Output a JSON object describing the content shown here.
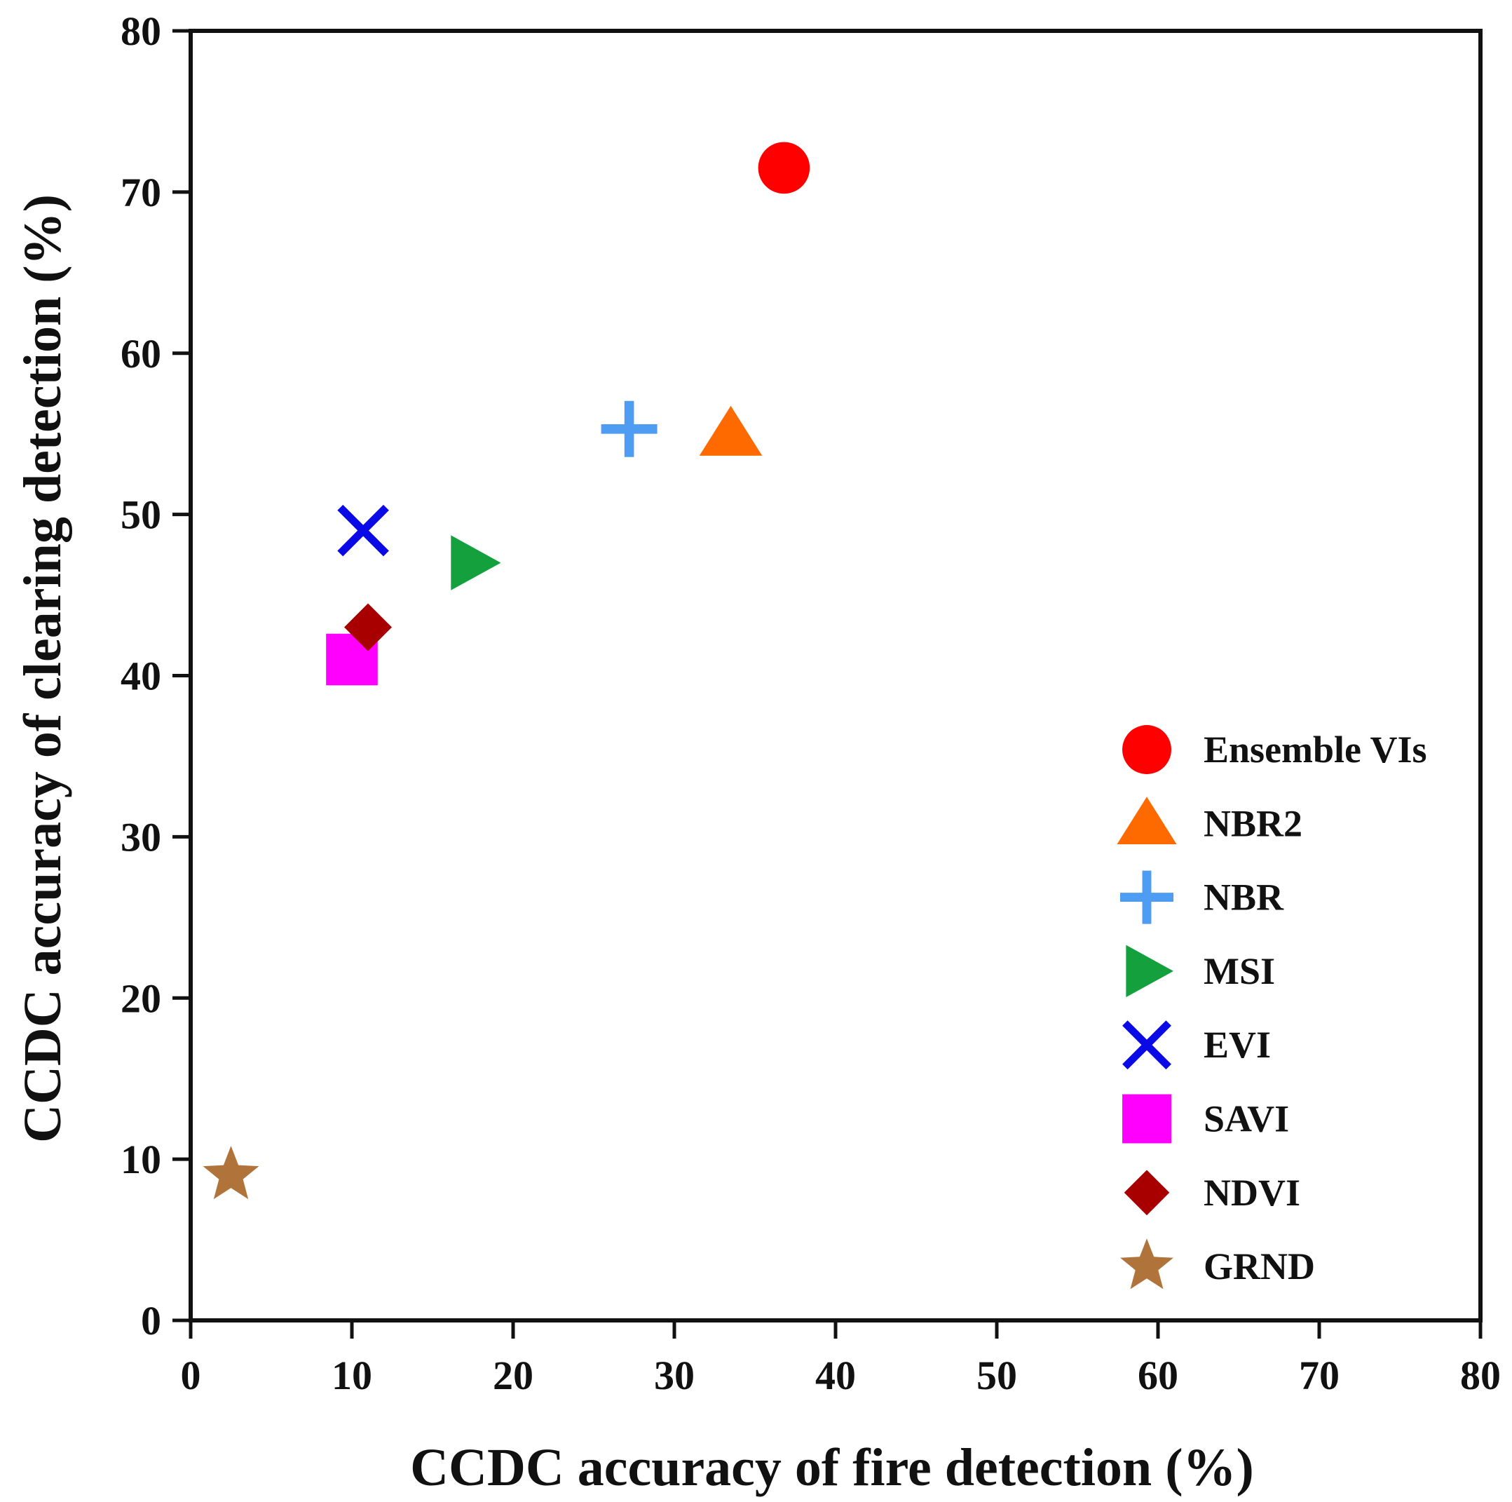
{
  "chart_data": {
    "type": "scatter",
    "title": "",
    "xlabel": "CCDC accuracy of fire detection (%)",
    "ylabel": "CCDC accuracy of clearing detection (%)",
    "xlim": [
      0,
      80
    ],
    "ylim": [
      0,
      80
    ],
    "xticks": [
      0,
      10,
      20,
      30,
      40,
      50,
      60,
      70,
      80
    ],
    "yticks": [
      0,
      10,
      20,
      30,
      40,
      50,
      60,
      70,
      80
    ],
    "grid": false,
    "legend_position": "bottom-right",
    "series": [
      {
        "name": "Ensemble VIs",
        "marker": "circle",
        "color": "#ff0000",
        "x": 36.8,
        "y": 71.5
      },
      {
        "name": "NBR2",
        "marker": "triangle-up",
        "color": "#ff6a00",
        "x": 33.5,
        "y": 55.0
      },
      {
        "name": "NBR",
        "marker": "plus",
        "color": "#4f9df2",
        "x": 27.2,
        "y": 55.3
      },
      {
        "name": "MSI",
        "marker": "triangle-right",
        "color": "#14a03c",
        "x": 17.5,
        "y": 47.0
      },
      {
        "name": "EVI",
        "marker": "x",
        "color": "#0a0ae6",
        "x": 10.7,
        "y": 49.0
      },
      {
        "name": "SAVI",
        "marker": "square",
        "color": "#ff00ff",
        "x": 10.0,
        "y": 41.0
      },
      {
        "name": "NDVI",
        "marker": "diamond",
        "color": "#a80000",
        "x": 11.0,
        "y": 43.0
      },
      {
        "name": "GRND",
        "marker": "star",
        "color": "#b0733a",
        "x": 2.5,
        "y": 9.0
      }
    ]
  }
}
